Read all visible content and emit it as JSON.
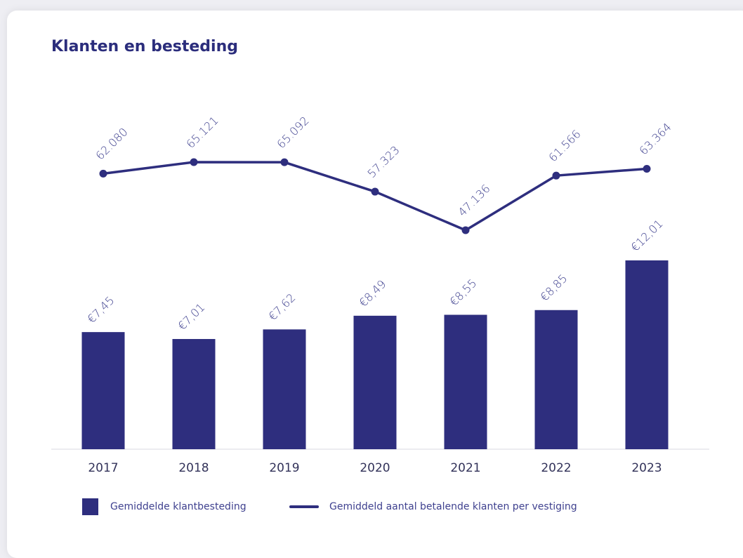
{
  "chart_data": {
    "type": "combo",
    "title": "Klanten en besteding",
    "categories": [
      "2017",
      "2018",
      "2019",
      "2020",
      "2021",
      "2022",
      "2023"
    ],
    "series": [
      {
        "name": "Gemiddelde klantbesteding",
        "type": "bar",
        "color": "#2e2e7e",
        "values": [
          7.45,
          7.01,
          7.62,
          8.49,
          8.55,
          8.85,
          12.01
        ],
        "value_labels": [
          "€7,45",
          "€7,01",
          "€7,62",
          "€8,49",
          "€8,55",
          "€8,85",
          "€12,01"
        ]
      },
      {
        "name": "Gemiddeld aantal betalende klanten per vestiging",
        "type": "line",
        "color": "#2e2e7e",
        "values": [
          62080,
          65121,
          65092,
          57323,
          47136,
          61566,
          63364
        ],
        "value_labels": [
          "62.080",
          "65.121",
          "65.092",
          "57.323",
          "47.136",
          "61.566",
          "63.364"
        ]
      }
    ]
  }
}
